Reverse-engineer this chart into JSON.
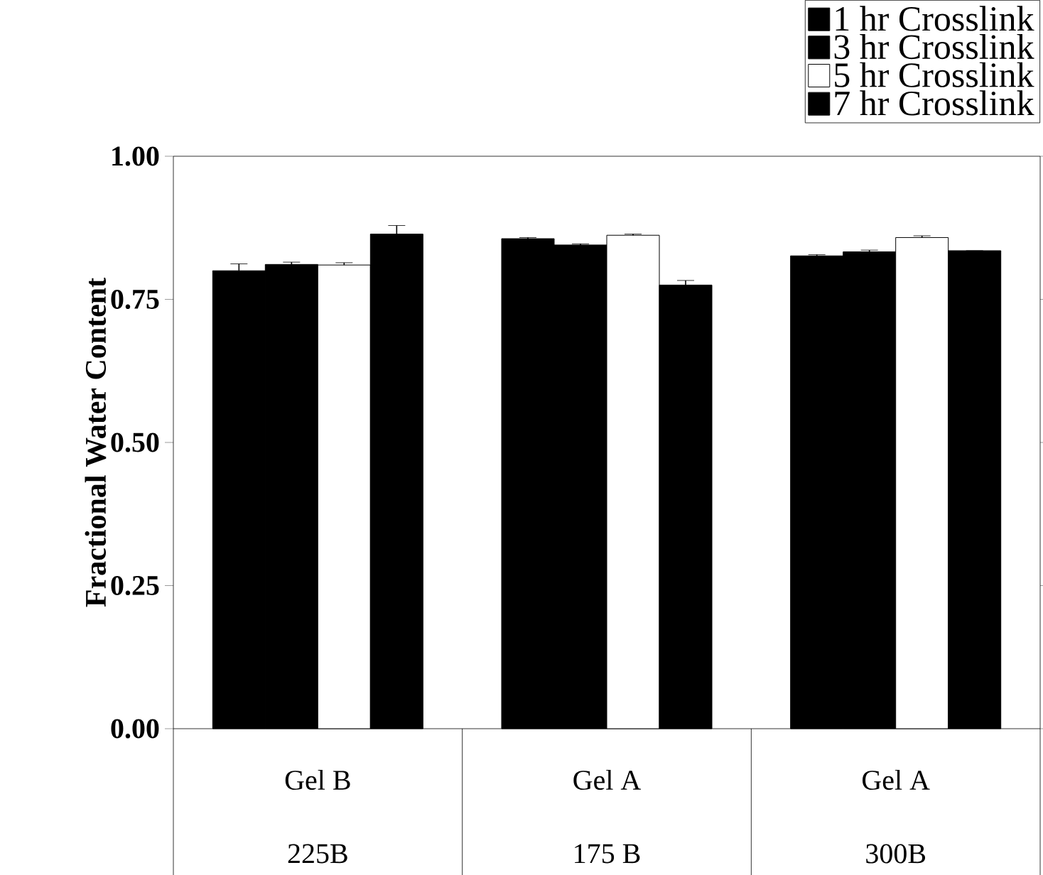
{
  "chart_data": {
    "type": "bar",
    "ylabel": "Fractional Water Content",
    "categories": [
      "Gel B",
      "Gel A",
      "Gel A"
    ],
    "annotations": [
      "225B",
      "175 B",
      "300B"
    ],
    "series": [
      {
        "name": "1 hr Crosslink",
        "color": "#000000",
        "values": [
          0.8,
          0.856,
          0.826
        ],
        "errors": [
          0.012,
          0.002,
          0.002
        ]
      },
      {
        "name": "3 hr Crosslink",
        "color": "#000000",
        "values": [
          0.811,
          0.845,
          0.833
        ],
        "errors": [
          0.004,
          0.002,
          0.003
        ]
      },
      {
        "name": "5 hr Crosslink",
        "color": "#ffffff",
        "values": [
          0.81,
          0.862,
          0.858
        ],
        "errors": [
          0.004,
          0.002,
          0.003
        ]
      },
      {
        "name": "7 hr Crosslink",
        "color": "#000000",
        "values": [
          0.864,
          0.775,
          0.835
        ],
        "errors": [
          0.015,
          0.008,
          0.0
        ]
      }
    ],
    "ylim": [
      0,
      1
    ],
    "yticks": [
      {
        "value": 0,
        "label": "0.00"
      },
      {
        "value": 0.25,
        "label": "0.25"
      },
      {
        "value": 0.5,
        "label": "0.50"
      },
      {
        "value": 0.75,
        "label": "0.75"
      },
      {
        "value": 1,
        "label": "1.00"
      }
    ],
    "legend": "top right"
  }
}
